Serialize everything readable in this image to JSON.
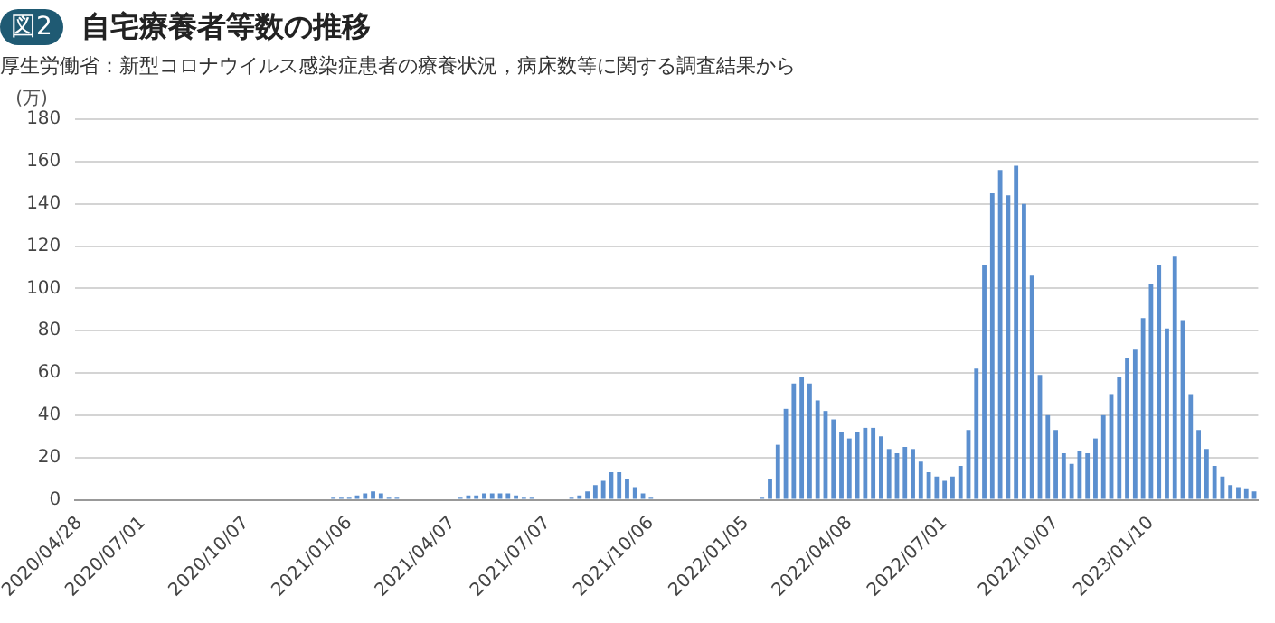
{
  "chart_data": {
    "type": "bar",
    "title": "自宅療養者等数の推移",
    "subtitle": "厚生労働省：新型コロナウイルス感染症患者の療養状況，病床数等に関する調査結果から",
    "annotations": [
      "図2"
    ],
    "ylabel": "(万)",
    "categories": [
      "2020/04/28",
      null,
      null,
      null,
      null,
      null,
      null,
      null,
      "2020/07/01",
      null,
      null,
      null,
      null,
      null,
      null,
      null,
      null,
      null,
      null,
      null,
      null,
      "2020/10/07",
      null,
      null,
      null,
      null,
      null,
      null,
      null,
      null,
      null,
      null,
      null,
      null,
      "2021/01/06",
      null,
      null,
      null,
      null,
      null,
      null,
      null,
      null,
      null,
      null,
      null,
      null,
      "2021/04/07",
      null,
      null,
      null,
      null,
      null,
      null,
      null,
      null,
      null,
      null,
      null,
      "2021/07/07",
      null,
      null,
      null,
      null,
      null,
      null,
      null,
      null,
      null,
      null,
      null,
      null,
      "2021/10/06",
      null,
      null,
      null,
      null,
      null,
      null,
      null,
      null,
      null,
      null,
      null,
      "2022/01/05",
      null,
      null,
      null,
      null,
      null,
      null,
      null,
      null,
      null,
      null,
      null,
      null,
      "2022/04/08",
      null,
      null,
      null,
      null,
      null,
      null,
      null,
      null,
      null,
      null,
      null,
      "2022/07/01",
      null,
      null,
      null,
      null,
      null,
      null,
      null,
      null,
      null,
      null,
      null,
      null,
      null,
      "2022/10/07",
      null,
      null,
      null,
      null,
      null,
      null,
      null,
      null,
      null,
      null,
      null,
      "2023/01/10",
      null,
      null,
      null,
      null,
      null,
      null,
      null,
      null,
      null,
      null,
      null,
      null,
      null
    ],
    "values": [
      0,
      0,
      0,
      0,
      0,
      0,
      0,
      0,
      0,
      0,
      0,
      0,
      0,
      0,
      0,
      0,
      0,
      0,
      0,
      0,
      0,
      0,
      0,
      0,
      0,
      0,
      0,
      0,
      0,
      0,
      0,
      0,
      1,
      1,
      1,
      2,
      3,
      4,
      3,
      1,
      1,
      0,
      0,
      0,
      0,
      0,
      0,
      0,
      1,
      2,
      2,
      3,
      3,
      3,
      3,
      2,
      1,
      1,
      0,
      0,
      0,
      0,
      1,
      2,
      4,
      7,
      9,
      13,
      13,
      10,
      6,
      3,
      1,
      0,
      0,
      0,
      0,
      0,
      0,
      0,
      0,
      0,
      0,
      0,
      0,
      0,
      1,
      10,
      26,
      43,
      55,
      58,
      55,
      47,
      42,
      38,
      32,
      29,
      32,
      34,
      34,
      30,
      24,
      22,
      25,
      24,
      18,
      13,
      11,
      9,
      11,
      16,
      33,
      62,
      111,
      145,
      156,
      144,
      158,
      140,
      106,
      59,
      40,
      33,
      22,
      17,
      23,
      22,
      29,
      40,
      50,
      58,
      67,
      71,
      86,
      102,
      111,
      81,
      115,
      85,
      50,
      33,
      24,
      16,
      11,
      7,
      6,
      5,
      4
    ],
    "color": "#5b8fcf",
    "ylim": [
      0,
      180
    ],
    "yticks": [
      0,
      20,
      40,
      60,
      80,
      100,
      120,
      140,
      160,
      180
    ],
    "grid": "y",
    "legend": false
  }
}
